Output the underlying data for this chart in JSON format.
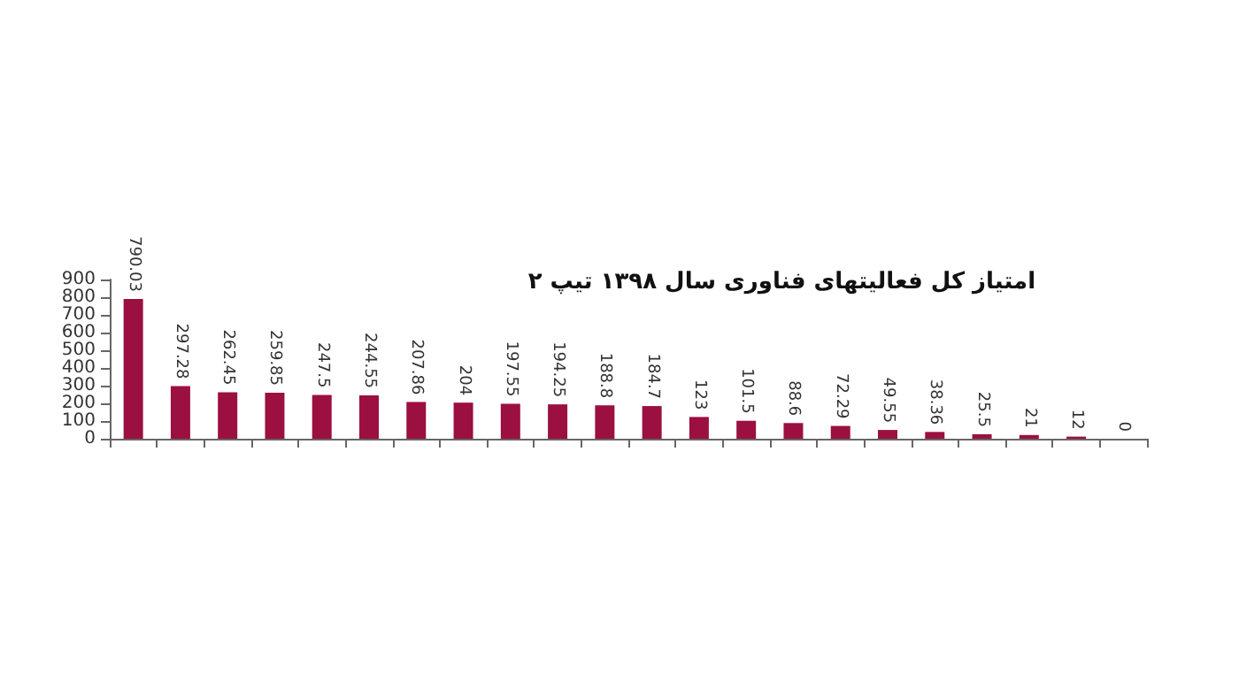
{
  "chart_data": {
    "type": "bar",
    "title": "امتیاز کل فعالیتهای فناوری سال ۱۳۹۸ تیپ ۲",
    "categories": [
      null,
      null,
      null,
      null,
      null,
      null,
      null,
      null,
      null,
      null,
      null,
      null,
      null,
      null,
      null,
      null,
      null,
      null,
      null,
      null,
      null,
      null
    ],
    "values": [
      790.03,
      297.28,
      262.45,
      259.85,
      247.5,
      244.55,
      207.86,
      204,
      197.55,
      194.25,
      188.8,
      184.7,
      123,
      101.5,
      88.6,
      72.29,
      49.55,
      38.36,
      25.5,
      21,
      12,
      0
    ],
    "color": "#9b1040",
    "ylim": [
      0,
      900
    ],
    "yticks": [
      0,
      100,
      200,
      300,
      400,
      500,
      600,
      700,
      800,
      900
    ],
    "grid": false,
    "data_labels": true
  }
}
